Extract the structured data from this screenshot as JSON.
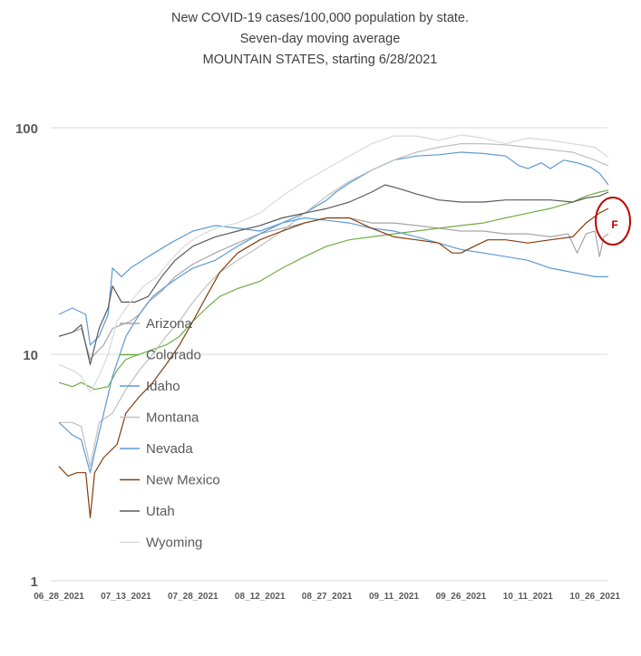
{
  "chart_data": {
    "type": "line",
    "title_lines": [
      "New COVID-19 cases/100,000 population by state.",
      "Seven-day moving average",
      "MOUNTAIN STATES, starting 6/28/2021"
    ],
    "y_scale": "log",
    "ylim": [
      1,
      100
    ],
    "y_ticks": [
      1,
      10,
      100
    ],
    "y_tick_labels": [
      "1",
      "10",
      "100"
    ],
    "x_ticks": [
      "06_28_2021",
      "07_13_2021",
      "07_28_2021",
      "08_12_2021",
      "08_27_2021",
      "09_11_2021",
      "09_26_2021",
      "10_11_2021",
      "10_26_2021"
    ],
    "x_tick_days": [
      0,
      15,
      30,
      45,
      60,
      75,
      90,
      105,
      120
    ],
    "x_day_range": [
      0,
      123
    ],
    "grid": true,
    "legend_position": "left-center",
    "series": [
      {
        "name": "Arizona",
        "color": "#a6a6a6",
        "points": [
          [
            0,
            12
          ],
          [
            3,
            12.5
          ],
          [
            5,
            13
          ],
          [
            7,
            9.5
          ],
          [
            8,
            10
          ],
          [
            10,
            11
          ],
          [
            12,
            13
          ],
          [
            14,
            13.5
          ],
          [
            16,
            14
          ],
          [
            18,
            15
          ],
          [
            20,
            17
          ],
          [
            23,
            19
          ],
          [
            26,
            22
          ],
          [
            30,
            25
          ],
          [
            35,
            28
          ],
          [
            40,
            31
          ],
          [
            45,
            34
          ],
          [
            50,
            36
          ],
          [
            55,
            38
          ],
          [
            60,
            40
          ],
          [
            65,
            40
          ],
          [
            70,
            38
          ],
          [
            75,
            38
          ],
          [
            80,
            37
          ],
          [
            85,
            36
          ],
          [
            90,
            35
          ],
          [
            95,
            35
          ],
          [
            100,
            34
          ],
          [
            105,
            34
          ],
          [
            110,
            33
          ],
          [
            114,
            34
          ],
          [
            116,
            28
          ],
          [
            118,
            34
          ],
          [
            120,
            35
          ],
          [
            121,
            27
          ],
          [
            122,
            33
          ],
          [
            123,
            34
          ]
        ]
      },
      {
        "name": "Colorado",
        "color": "#70ad47",
        "points": [
          [
            0,
            7.5
          ],
          [
            3,
            7.2
          ],
          [
            5,
            7.5
          ],
          [
            8,
            7.0
          ],
          [
            11,
            7.2
          ],
          [
            13,
            8.5
          ],
          [
            15,
            9.5
          ],
          [
            18,
            10
          ],
          [
            21,
            10.5
          ],
          [
            24,
            11
          ],
          [
            27,
            12
          ],
          [
            30,
            14
          ],
          [
            33,
            16
          ],
          [
            36,
            18
          ],
          [
            40,
            19.5
          ],
          [
            45,
            21
          ],
          [
            50,
            24
          ],
          [
            55,
            27
          ],
          [
            60,
            30
          ],
          [
            65,
            32
          ],
          [
            70,
            33
          ],
          [
            75,
            34
          ],
          [
            80,
            35
          ],
          [
            85,
            36
          ],
          [
            90,
            37
          ],
          [
            95,
            38
          ],
          [
            100,
            40
          ],
          [
            105,
            42
          ],
          [
            110,
            44
          ],
          [
            115,
            47
          ],
          [
            118,
            50
          ],
          [
            121,
            52
          ],
          [
            123,
            53
          ]
        ]
      },
      {
        "name": "Idaho",
        "color": "#5b9bd5",
        "points": [
          [
            0,
            15
          ],
          [
            3,
            16
          ],
          [
            6,
            15
          ],
          [
            7,
            11
          ],
          [
            9,
            12
          ],
          [
            11,
            15
          ],
          [
            12,
            24
          ],
          [
            14,
            22
          ],
          [
            16,
            24
          ],
          [
            20,
            27
          ],
          [
            25,
            31
          ],
          [
            30,
            35
          ],
          [
            35,
            37
          ],
          [
            40,
            36
          ],
          [
            45,
            35
          ],
          [
            50,
            38
          ],
          [
            55,
            42
          ],
          [
            60,
            48
          ],
          [
            62,
            52
          ],
          [
            65,
            57
          ],
          [
            70,
            65
          ],
          [
            75,
            72
          ],
          [
            80,
            75
          ],
          [
            85,
            76
          ],
          [
            90,
            78
          ],
          [
            95,
            77
          ],
          [
            100,
            75
          ],
          [
            103,
            68
          ],
          [
            105,
            66
          ],
          [
            108,
            70
          ],
          [
            110,
            66
          ],
          [
            113,
            72
          ],
          [
            116,
            70
          ],
          [
            119,
            67
          ],
          [
            121,
            63
          ],
          [
            123,
            56
          ]
        ]
      },
      {
        "name": "Montana",
        "color": "#bfbfbf",
        "points": [
          [
            0,
            5
          ],
          [
            3,
            5
          ],
          [
            5,
            4.8
          ],
          [
            7,
            3.2
          ],
          [
            9,
            5
          ],
          [
            12,
            5.5
          ],
          [
            15,
            7
          ],
          [
            18,
            8.5
          ],
          [
            21,
            10
          ],
          [
            24,
            12
          ],
          [
            27,
            14
          ],
          [
            30,
            17
          ],
          [
            33,
            20
          ],
          [
            36,
            23
          ],
          [
            40,
            26
          ],
          [
            45,
            30
          ],
          [
            50,
            35
          ],
          [
            55,
            42
          ],
          [
            60,
            50
          ],
          [
            65,
            58
          ],
          [
            70,
            65
          ],
          [
            75,
            72
          ],
          [
            80,
            78
          ],
          [
            85,
            82
          ],
          [
            90,
            85
          ],
          [
            95,
            85
          ],
          [
            100,
            84
          ],
          [
            105,
            82
          ],
          [
            110,
            80
          ],
          [
            115,
            78
          ],
          [
            120,
            72
          ],
          [
            123,
            68
          ]
        ]
      },
      {
        "name": "Nevada",
        "color": "#5b9bd5",
        "points": [
          [
            0,
            5
          ],
          [
            3,
            4.4
          ],
          [
            5,
            4.2
          ],
          [
            7,
            3.0
          ],
          [
            9,
            4.5
          ],
          [
            12,
            8.0
          ],
          [
            15,
            12
          ],
          [
            18,
            15
          ],
          [
            21,
            18
          ],
          [
            24,
            20
          ],
          [
            27,
            22
          ],
          [
            30,
            24
          ],
          [
            35,
            26
          ],
          [
            40,
            30
          ],
          [
            45,
            34
          ],
          [
            50,
            38
          ],
          [
            55,
            40
          ],
          [
            60,
            39
          ],
          [
            65,
            38
          ],
          [
            70,
            36
          ],
          [
            75,
            35
          ],
          [
            80,
            33
          ],
          [
            85,
            31
          ],
          [
            90,
            29
          ],
          [
            95,
            28
          ],
          [
            100,
            27
          ],
          [
            105,
            26
          ],
          [
            110,
            24
          ],
          [
            115,
            23
          ],
          [
            120,
            22
          ],
          [
            123,
            22
          ]
        ]
      },
      {
        "name": "New Mexico",
        "color": "#843c0c",
        "points": [
          [
            0,
            3.2
          ],
          [
            2,
            2.9
          ],
          [
            4,
            3.0
          ],
          [
            6,
            3.0
          ],
          [
            7,
            1.9
          ],
          [
            8,
            3.0
          ],
          [
            10,
            3.5
          ],
          [
            13,
            4.0
          ],
          [
            15,
            5.5
          ],
          [
            18,
            6.5
          ],
          [
            21,
            7.5
          ],
          [
            24,
            9
          ],
          [
            27,
            11
          ],
          [
            30,
            14
          ],
          [
            33,
            18
          ],
          [
            36,
            23
          ],
          [
            40,
            28
          ],
          [
            45,
            32
          ],
          [
            50,
            35
          ],
          [
            55,
            38
          ],
          [
            60,
            40
          ],
          [
            65,
            40
          ],
          [
            70,
            36
          ],
          [
            75,
            33
          ],
          [
            80,
            32
          ],
          [
            85,
            31
          ],
          [
            88,
            28
          ],
          [
            90,
            28
          ],
          [
            93,
            30
          ],
          [
            96,
            32
          ],
          [
            100,
            32
          ],
          [
            105,
            31
          ],
          [
            110,
            32
          ],
          [
            115,
            33
          ],
          [
            118,
            38
          ],
          [
            121,
            42
          ],
          [
            123,
            44
          ]
        ]
      },
      {
        "name": "Utah",
        "color": "#595959",
        "points": [
          [
            0,
            12
          ],
          [
            3,
            12.5
          ],
          [
            5,
            13.5
          ],
          [
            7,
            9
          ],
          [
            9,
            13
          ],
          [
            11,
            16
          ],
          [
            12,
            20
          ],
          [
            14,
            17
          ],
          [
            17,
            17
          ],
          [
            20,
            18
          ],
          [
            23,
            22
          ],
          [
            26,
            26
          ],
          [
            30,
            30
          ],
          [
            35,
            33
          ],
          [
            40,
            35
          ],
          [
            45,
            37
          ],
          [
            50,
            40
          ],
          [
            55,
            42
          ],
          [
            60,
            44
          ],
          [
            65,
            47
          ],
          [
            70,
            52
          ],
          [
            73,
            56
          ],
          [
            76,
            54
          ],
          [
            80,
            51
          ],
          [
            85,
            48
          ],
          [
            90,
            47
          ],
          [
            95,
            47
          ],
          [
            100,
            48
          ],
          [
            105,
            48
          ],
          [
            110,
            48
          ],
          [
            115,
            47
          ],
          [
            118,
            49
          ],
          [
            121,
            50
          ],
          [
            123,
            52
          ]
        ]
      },
      {
        "name": "Wyoming",
        "color": "#d9d9d9",
        "points": [
          [
            0,
            9
          ],
          [
            3,
            8.5
          ],
          [
            5,
            8
          ],
          [
            7,
            6.8
          ],
          [
            9,
            8
          ],
          [
            11,
            10
          ],
          [
            13,
            14
          ],
          [
            16,
            17
          ],
          [
            19,
            20
          ],
          [
            22,
            22
          ],
          [
            25,
            26
          ],
          [
            28,
            30
          ],
          [
            31,
            33
          ],
          [
            35,
            36
          ],
          [
            40,
            38
          ],
          [
            45,
            42
          ],
          [
            50,
            50
          ],
          [
            55,
            58
          ],
          [
            60,
            66
          ],
          [
            65,
            75
          ],
          [
            70,
            85
          ],
          [
            75,
            92
          ],
          [
            80,
            92
          ],
          [
            85,
            88
          ],
          [
            90,
            93
          ],
          [
            95,
            90
          ],
          [
            100,
            85
          ],
          [
            105,
            90
          ],
          [
            110,
            88
          ],
          [
            115,
            85
          ],
          [
            120,
            82
          ],
          [
            123,
            74
          ]
        ]
      }
    ],
    "annotations": [
      {
        "text": "F",
        "color": "#c00000",
        "attached_day": 123
      }
    ]
  }
}
